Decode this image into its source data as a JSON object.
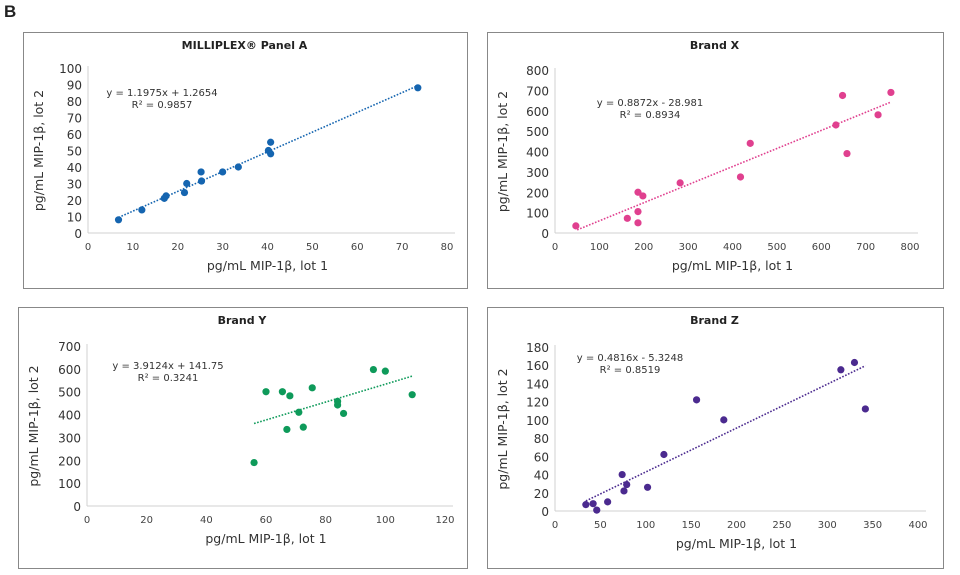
{
  "figure_label": "B",
  "chart_data": [
    {
      "type": "scatter",
      "title": "MILLIPLEX® Panel A",
      "xlabel": "pg/mL MIP-1β, lot 1",
      "ylabel": "pg/mL MIP-1β, lot 2",
      "xlim": [
        0,
        80
      ],
      "xticks": [
        0,
        10,
        20,
        30,
        40,
        50,
        60,
        70,
        80
      ],
      "ylim": [
        0,
        100
      ],
      "yticks": [
        0,
        10,
        20,
        30,
        40,
        50,
        60,
        70,
        80,
        90,
        100
      ],
      "color": "#1565b0",
      "grid": false,
      "equation": "y = 1.1975x + 1.2654",
      "r_squared": "R² = 0.9857",
      "trendline": {
        "slope": 1.1975,
        "intercept": 1.2654,
        "x_range": [
          6.8,
          73.5
        ]
      },
      "points": [
        [
          6.8,
          8
        ],
        [
          12,
          14
        ],
        [
          17,
          21
        ],
        [
          17.4,
          22.5
        ],
        [
          21.5,
          24.5
        ],
        [
          22,
          30
        ],
        [
          25.2,
          37
        ],
        [
          25.3,
          31.5
        ],
        [
          30,
          37
        ],
        [
          33.5,
          40
        ],
        [
          40.2,
          50
        ],
        [
          40.7,
          55
        ],
        [
          40.7,
          48
        ],
        [
          73.5,
          88
        ]
      ]
    },
    {
      "type": "scatter",
      "title": "Brand X",
      "xlabel": "pg/mL MIP-1β, lot 1",
      "ylabel": "pg/mL MIP-1β, lot 2",
      "xlim": [
        0,
        800
      ],
      "xticks": [
        0,
        100,
        200,
        300,
        400,
        500,
        600,
        700,
        800
      ],
      "ylim": [
        0,
        800
      ],
      "yticks": [
        0,
        100,
        200,
        300,
        400,
        500,
        600,
        700,
        800
      ],
      "color": "#e0408f",
      "grid": false,
      "equation": "y = 0.8872x - 28.981",
      "r_squared": "R² = 0.8934",
      "trendline": {
        "slope": 0.8872,
        "intercept": -28.981,
        "x_range": [
          50,
          757
        ]
      },
      "points": [
        [
          47,
          35
        ],
        [
          163,
          72
        ],
        [
          187,
          200
        ],
        [
          187,
          105
        ],
        [
          187,
          50
        ],
        [
          198,
          182
        ],
        [
          282,
          246
        ],
        [
          418,
          275
        ],
        [
          440,
          440
        ],
        [
          633,
          530
        ],
        [
          648,
          675
        ],
        [
          658,
          390
        ],
        [
          728,
          580
        ],
        [
          757,
          690
        ]
      ]
    },
    {
      "type": "scatter",
      "title": "Brand Y",
      "xlabel": "pg/mL MIP-1β, lot 1",
      "ylabel": "pg/mL MIP-1β, lot 2",
      "xlim": [
        0,
        120
      ],
      "xticks": [
        0,
        20,
        40,
        60,
        80,
        100,
        120
      ],
      "ylim": [
        0,
        700
      ],
      "yticks": [
        0,
        100,
        200,
        300,
        400,
        500,
        600,
        700
      ],
      "color": "#0e9a5a",
      "grid": false,
      "equation": "y = 3.9124x + 141.75",
      "r_squared": "R² = 0.3241",
      "trendline": {
        "slope": 3.9124,
        "intercept": 141.75,
        "x_range": [
          56,
          109
        ]
      },
      "points": [
        [
          56,
          190
        ],
        [
          60,
          500
        ],
        [
          65.5,
          500
        ],
        [
          67,
          335
        ],
        [
          68,
          482
        ],
        [
          71,
          410
        ],
        [
          72.5,
          345
        ],
        [
          75.5,
          517
        ],
        [
          84,
          458
        ],
        [
          84,
          442
        ],
        [
          86,
          405
        ],
        [
          96,
          597
        ],
        [
          100,
          590
        ],
        [
          109,
          487
        ]
      ]
    },
    {
      "type": "scatter",
      "title": "Brand Z",
      "xlabel": "pg/mL MIP-1β, lot 1",
      "ylabel": "pg/mL MIP-1β, lot 2",
      "xlim": [
        0,
        400
      ],
      "xticks": [
        0,
        50,
        100,
        150,
        200,
        250,
        300,
        350,
        400
      ],
      "ylim": [
        0,
        180
      ],
      "yticks": [
        0,
        20,
        40,
        60,
        80,
        100,
        120,
        140,
        160,
        180
      ],
      "color": "#4b2a8f",
      "grid": false,
      "equation": "y = 0.4816x - 5.3248",
      "r_squared": "R² = 0.8519",
      "trendline": {
        "slope": 0.4816,
        "intercept": -5.3248,
        "x_range": [
          34,
          342
        ]
      },
      "points": [
        [
          34,
          7
        ],
        [
          42,
          8
        ],
        [
          46,
          1
        ],
        [
          58,
          10
        ],
        [
          74,
          40
        ],
        [
          76,
          22
        ],
        [
          79,
          29
        ],
        [
          102,
          26
        ],
        [
          120,
          62
        ],
        [
          156,
          122
        ],
        [
          186,
          100
        ],
        [
          315,
          155
        ],
        [
          330,
          163
        ],
        [
          342,
          112
        ]
      ]
    }
  ]
}
